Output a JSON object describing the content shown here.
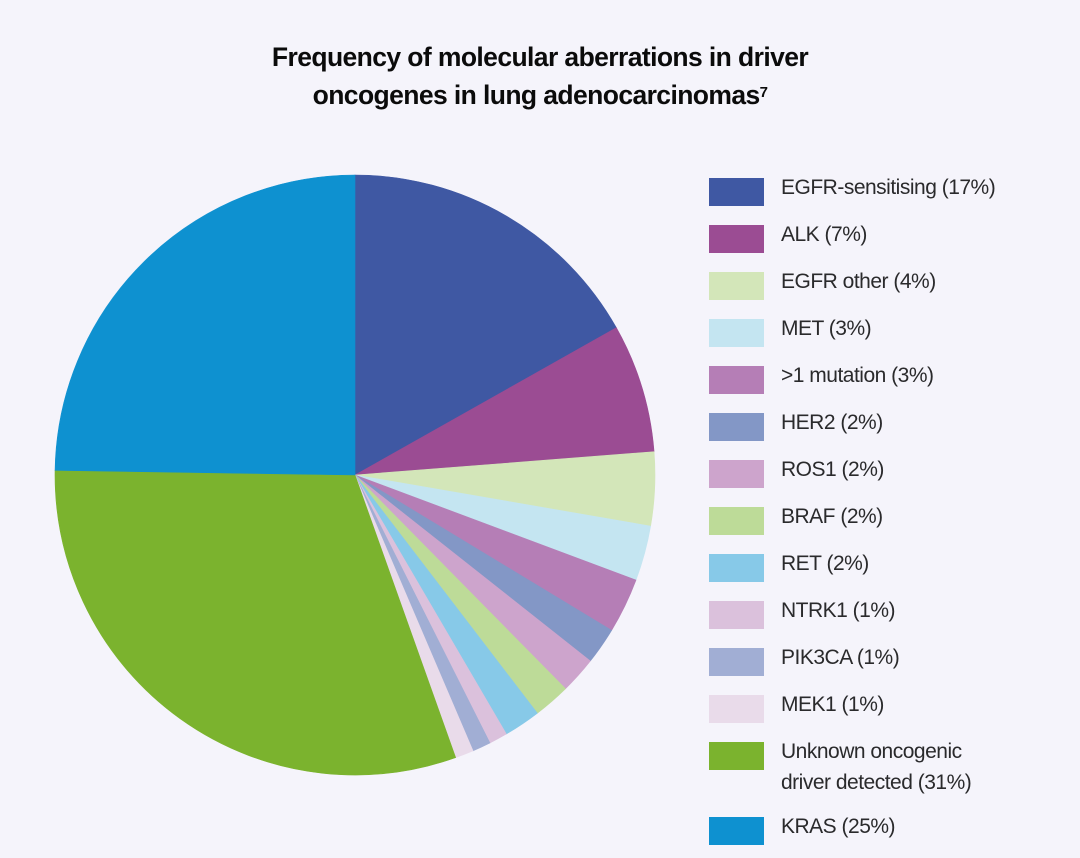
{
  "title": {
    "line1": "Frequency of molecular aberrations in driver",
    "line2": "oncogenes in lung adenocarcinomas",
    "superscript": "7"
  },
  "legend": {
    "items": [
      {
        "label": "EGFR-sensitising (17%)",
        "color": "#3f58a3"
      },
      {
        "label": "ALK (7%)",
        "color": "#9b4c93"
      },
      {
        "label": "EGFR other (4%)",
        "color": "#d3e6b9"
      },
      {
        "label": "MET (3%)",
        "color": "#c4e5f1"
      },
      {
        "label": ">1 mutation (3%)",
        "color": "#b57eb6"
      },
      {
        "label": "HER2 (2%)",
        "color": "#8397c6"
      },
      {
        "label": "ROS1 (2%)",
        "color": "#cda4cc"
      },
      {
        "label": "BRAF (2%)",
        "color": "#bddb98"
      },
      {
        "label": "RET (2%)",
        "color": "#87c9e8"
      },
      {
        "label": "NTRK1 (1%)",
        "color": "#dbc1dc"
      },
      {
        "label": "PIK3CA (1%)",
        "color": "#a1aed4"
      },
      {
        "label": "MEK1 (1%)",
        "color": "#e9dbea"
      },
      {
        "label": "Unknown oncogenic\ndriver detected (31%)",
        "color": "#7bb32e"
      },
      {
        "label": "KRAS (25%)",
        "color": "#0e91d0"
      }
    ]
  },
  "chart_data": {
    "type": "pie",
    "title": "Frequency of molecular aberrations in driver oncogenes in lung adenocarcinomas",
    "categories": [
      "EGFR-sensitising",
      "ALK",
      "EGFR other",
      "MET",
      ">1 mutation",
      "HER2",
      "ROS1",
      "BRAF",
      "RET",
      "NTRK1",
      "PIK3CA",
      "MEK1",
      "Unknown oncogenic driver detected",
      "KRAS"
    ],
    "values": [
      17,
      7,
      4,
      3,
      3,
      2,
      2,
      2,
      2,
      1,
      1,
      1,
      31,
      25
    ],
    "colors": [
      "#3f58a3",
      "#9b4c93",
      "#d3e6b9",
      "#c4e5f1",
      "#b57eb6",
      "#8397c6",
      "#cda4cc",
      "#bddb98",
      "#87c9e8",
      "#dbc1dc",
      "#a1aed4",
      "#e9dbea",
      "#7bb32e",
      "#0e91d0"
    ],
    "unit": "%",
    "start_angle": "12 o'clock",
    "direction": "clockwise",
    "legend_position": "right"
  }
}
